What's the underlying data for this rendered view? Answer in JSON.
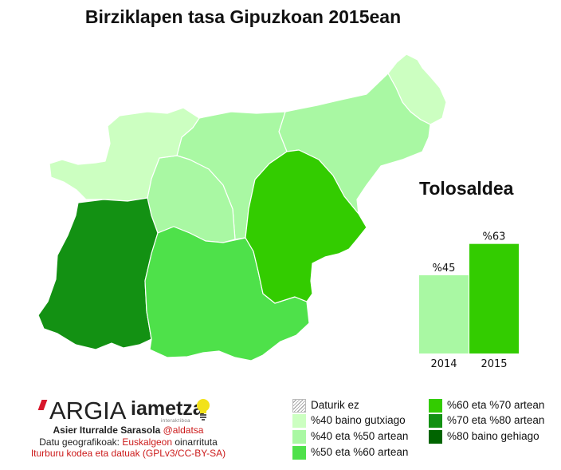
{
  "title": "Birziklapen tasa Gipuzkoan 2015ean",
  "region_title": "Tolosaldea",
  "colors": {
    "no_data": "hatched",
    "lt40": "#ccffc1",
    "r40_50": "#a9f8a3",
    "r50_60": "#4ee14a",
    "r60_70": "#33cc00",
    "r70_80": "#139113",
    "gt80": "#006400"
  },
  "regions": [
    {
      "name": "region-west-coast",
      "class": "lt40"
    },
    {
      "name": "region-north-coast",
      "class": "lt40"
    },
    {
      "name": "region-northeast",
      "class": "lt40"
    },
    {
      "name": "region-north-central",
      "class": "r40_50"
    },
    {
      "name": "region-east-coast",
      "class": "r40_50"
    },
    {
      "name": "region-central",
      "class": "r40_50"
    },
    {
      "name": "region-southwest",
      "class": "r70_80"
    },
    {
      "name": "region-south",
      "class": "r50_60"
    },
    {
      "name": "region-tolosaldea",
      "class": "r60_70"
    }
  ],
  "chart_data": {
    "type": "bar",
    "categories": [
      "2014",
      "2015"
    ],
    "values": [
      45,
      63
    ],
    "value_labels": [
      "%45",
      "%63"
    ],
    "colors": [
      "#a9f8a3",
      "#33cc00"
    ],
    "ylim": [
      0,
      100
    ],
    "title": "Tolosaldea"
  },
  "legend": {
    "items": [
      {
        "label": "Daturik ez",
        "color": "hatched"
      },
      {
        "label": "%40 baino gutxiago",
        "color": "#ccffc1"
      },
      {
        "label": "%40 eta %50 artean",
        "color": "#a9f8a3"
      },
      {
        "label": "%50 eta %60 artean",
        "color": "#4ee14a"
      },
      {
        "label": "%60 eta %70 artean",
        "color": "#33cc00"
      },
      {
        "label": "%70 eta %80 artean",
        "color": "#139113"
      },
      {
        "label": "%80 baino gehiago",
        "color": "#006400"
      }
    ]
  },
  "logos": {
    "argia": "ARGIA",
    "iametza": "iametza",
    "iametza_sub": "interaktiboa"
  },
  "credits": {
    "author": "Asier Iturralde Sarasola",
    "handle": "@aldatsa",
    "geo_prefix": "Datu geografikoak:",
    "geo_source": "Euskalgeon",
    "geo_suffix": "oinarrituta",
    "source_line": "Iturburu kodea eta datuak (GPLv3/CC-BY-SA)"
  }
}
